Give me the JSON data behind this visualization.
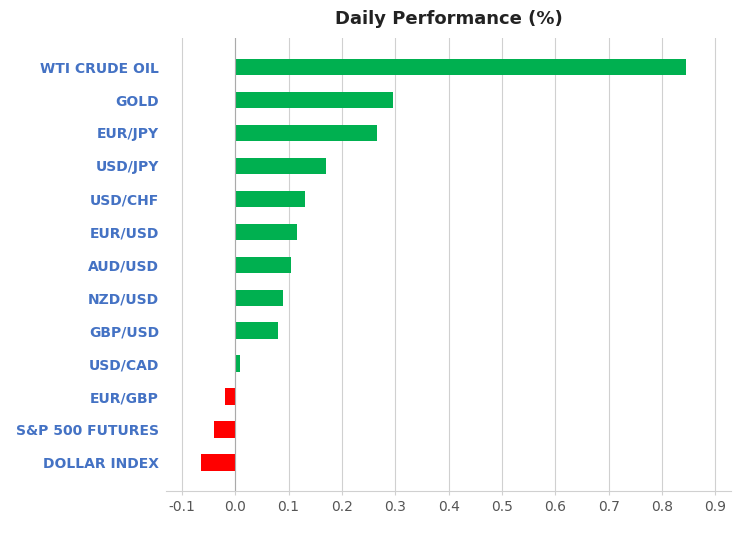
{
  "title": "Daily Performance (%)",
  "categories": [
    "DOLLAR INDEX",
    "S&P 500 FUTURES",
    "EUR/GBP",
    "USD/CAD",
    "GBP/USD",
    "NZD/USD",
    "AUD/USD",
    "EUR/USD",
    "USD/CHF",
    "USD/JPY",
    "EUR/JPY",
    "GOLD",
    "WTI CRUDE OIL"
  ],
  "values": [
    -0.065,
    -0.04,
    -0.02,
    0.008,
    0.08,
    0.09,
    0.105,
    0.115,
    0.13,
    0.17,
    0.265,
    0.295,
    0.845
  ],
  "bar_colors_positive": "#00b050",
  "bar_colors_negative": "#ff0000",
  "xlim": [
    -0.13,
    0.93
  ],
  "xticks": [
    -0.1,
    0.0,
    0.1,
    0.2,
    0.3,
    0.4,
    0.5,
    0.6,
    0.7,
    0.8,
    0.9
  ],
  "background_color": "#ffffff",
  "title_fontsize": 13,
  "label_fontsize": 10,
  "label_color": "#4472c4",
  "tick_fontsize": 10,
  "bar_height": 0.5
}
